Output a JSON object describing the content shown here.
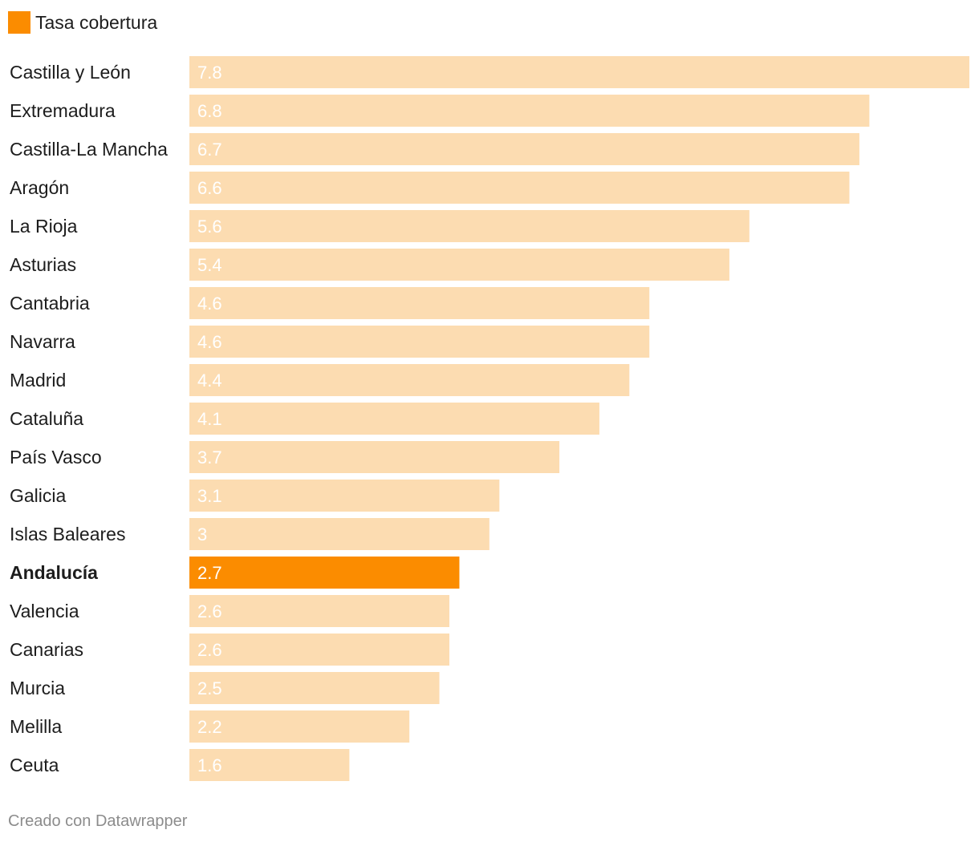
{
  "legend": {
    "label": "Tasa cobertura",
    "color": "#fb8c00"
  },
  "footer": {
    "credit": "Creado con Datawrapper"
  },
  "colors": {
    "bar": "#fcdcb1",
    "highlight": "#fb8c00",
    "label_text": "#1d1d1d",
    "value_text": "#ffffff"
  },
  "chart_data": {
    "type": "bar",
    "orientation": "horizontal",
    "series": [
      {
        "name": "Tasa cobertura",
        "values": [
          7.8,
          6.8,
          6.7,
          6.6,
          5.6,
          5.4,
          4.6,
          4.6,
          4.4,
          4.1,
          3.7,
          3.1,
          3,
          2.7,
          2.6,
          2.6,
          2.5,
          2.2,
          1.6
        ]
      }
    ],
    "categories": [
      "Castilla y León",
      "Extremadura",
      "Castilla-La Mancha",
      "Aragón",
      "La Rioja",
      "Asturias",
      "Cantabria",
      "Navarra",
      "Madrid",
      "Cataluña",
      "País Vasco",
      "Galicia",
      "Islas Baleares",
      "Andalucía",
      "Valencia",
      "Canarias",
      "Murcia",
      "Melilla",
      "Ceuta"
    ],
    "value_labels": [
      "7.8",
      "6.8",
      "6.7",
      "6.6",
      "5.6",
      "5.4",
      "4.6",
      "4.6",
      "4.4",
      "4.1",
      "3.7",
      "3.1",
      "3",
      "2.7",
      "2.6",
      "2.6",
      "2.5",
      "2.2",
      "1.6"
    ],
    "highlighted": [
      "Andalucía"
    ],
    "xlim": [
      0,
      7.8
    ],
    "grid": false,
    "legend_position": "top-left"
  }
}
